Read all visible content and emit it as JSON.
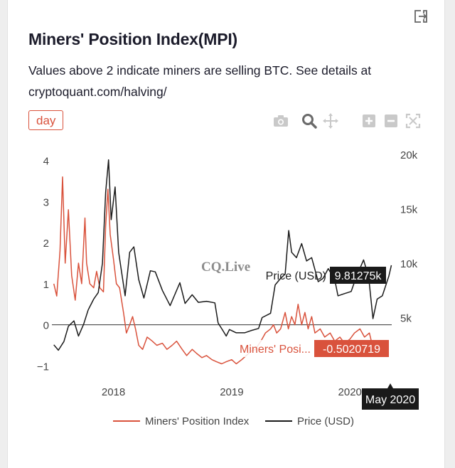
{
  "header": {
    "title": "Miners' Position Index(MPI)",
    "subtitle": "Values above 2 indicate miners are selling BTC. See details at cryptoquant.com/halving/",
    "period_label": "day"
  },
  "toolbar": {
    "icons": [
      "camera-icon",
      "zoom-icon",
      "pan-icon",
      "zoom-in-icon",
      "zoom-out-icon",
      "autoscale-icon"
    ],
    "export_icon": "export-icon"
  },
  "watermark": "CQ.Live",
  "hover": {
    "price_label": "Price (USD)",
    "price_value": "9.81275k",
    "mpi_label": "Miners' Posi...",
    "mpi_value": "-0.5020719",
    "x_label": "May 2020"
  },
  "colors": {
    "mpi": "#d9523c",
    "price": "#1a1a1a",
    "accent": "#d9523c",
    "axis_text": "#444444"
  },
  "chart_data": {
    "type": "line",
    "x_ticks": [
      "2018",
      "2019",
      "2020"
    ],
    "y_left": {
      "ticks": [
        -1,
        0,
        1,
        2,
        3,
        4
      ],
      "range": [
        -1.15,
        4.15
      ]
    },
    "y_right": {
      "ticks": [
        5000,
        10000,
        15000,
        20000
      ],
      "tick_labels": [
        "5k",
        "10k",
        "15k",
        "20k"
      ],
      "range": [
        0,
        20000
      ]
    },
    "legend": {
      "placement": "bottom"
    },
    "grid": false,
    "series": [
      {
        "name": "Miners' Position Index",
        "axis": "left",
        "color": "#d9523c",
        "points": [
          [
            "2017-07-01",
            1.0
          ],
          [
            "2017-07-10",
            0.7
          ],
          [
            "2017-07-20",
            1.8
          ],
          [
            "2017-07-28",
            3.6
          ],
          [
            "2017-08-05",
            1.5
          ],
          [
            "2017-08-15",
            2.8
          ],
          [
            "2017-08-25",
            1.2
          ],
          [
            "2017-09-05",
            0.6
          ],
          [
            "2017-09-15",
            1.5
          ],
          [
            "2017-09-25",
            1.0
          ],
          [
            "2017-10-05",
            2.6
          ],
          [
            "2017-10-10",
            1.5
          ],
          [
            "2017-10-20",
            1.0
          ],
          [
            "2017-11-01",
            0.9
          ],
          [
            "2017-11-10",
            1.3
          ],
          [
            "2017-11-20",
            0.9
          ],
          [
            "2017-12-01",
            0.8
          ],
          [
            "2017-12-08",
            2.4
          ],
          [
            "2017-12-15",
            3.3
          ],
          [
            "2017-12-22",
            2.2
          ],
          [
            "2018-01-01",
            1.6
          ],
          [
            "2018-01-10",
            1.0
          ],
          [
            "2018-01-20",
            0.9
          ],
          [
            "2018-02-01",
            0.3
          ],
          [
            "2018-02-10",
            -0.2
          ],
          [
            "2018-02-20",
            0.0
          ],
          [
            "2018-03-01",
            0.2
          ],
          [
            "2018-03-10",
            -0.1
          ],
          [
            "2018-03-20",
            -0.5
          ],
          [
            "2018-04-01",
            -0.6
          ],
          [
            "2018-04-15",
            -0.3
          ],
          [
            "2018-05-01",
            -0.4
          ],
          [
            "2018-05-15",
            -0.5
          ],
          [
            "2018-06-01",
            -0.45
          ],
          [
            "2018-06-15",
            -0.6
          ],
          [
            "2018-07-01",
            -0.5
          ],
          [
            "2018-07-15",
            -0.4
          ],
          [
            "2018-08-01",
            -0.6
          ],
          [
            "2018-08-15",
            -0.75
          ],
          [
            "2018-09-01",
            -0.6
          ],
          [
            "2018-09-15",
            -0.7
          ],
          [
            "2018-10-01",
            -0.8
          ],
          [
            "2018-10-15",
            -0.75
          ],
          [
            "2018-11-01",
            -0.85
          ],
          [
            "2018-11-15",
            -0.9
          ],
          [
            "2018-12-01",
            -0.95
          ],
          [
            "2018-12-15",
            -0.9
          ],
          [
            "2019-01-01",
            -0.85
          ],
          [
            "2019-01-15",
            -0.95
          ],
          [
            "2019-02-01",
            -0.85
          ],
          [
            "2019-02-15",
            -0.75
          ],
          [
            "2019-03-01",
            -0.65
          ],
          [
            "2019-03-15",
            -0.6
          ],
          [
            "2019-04-01",
            -0.4
          ],
          [
            "2019-04-15",
            -0.2
          ],
          [
            "2019-05-01",
            -0.1
          ],
          [
            "2019-05-10",
            0.0
          ],
          [
            "2019-05-20",
            -0.2
          ],
          [
            "2019-06-01",
            -0.1
          ],
          [
            "2019-06-15",
            0.3
          ],
          [
            "2019-06-25",
            -0.1
          ],
          [
            "2019-07-05",
            0.2
          ],
          [
            "2019-07-15",
            0.0
          ],
          [
            "2019-07-25",
            0.5
          ],
          [
            "2019-08-05",
            0.0
          ],
          [
            "2019-08-15",
            0.3
          ],
          [
            "2019-08-25",
            -0.1
          ],
          [
            "2019-09-05",
            0.2
          ],
          [
            "2019-09-15",
            -0.2
          ],
          [
            "2019-10-01",
            -0.1
          ],
          [
            "2019-10-15",
            -0.3
          ],
          [
            "2019-11-01",
            -0.2
          ],
          [
            "2019-11-15",
            -0.4
          ],
          [
            "2019-12-01",
            -0.3
          ],
          [
            "2019-12-15",
            -0.45
          ],
          [
            "2020-01-01",
            -0.35
          ],
          [
            "2020-01-15",
            -0.2
          ],
          [
            "2020-02-01",
            -0.1
          ],
          [
            "2020-02-15",
            -0.3
          ],
          [
            "2020-03-01",
            -0.2
          ],
          [
            "2020-03-10",
            -0.5
          ]
        ]
      },
      {
        "name": "Price (USD)",
        "axis": "right",
        "color": "#1a1a1a",
        "points": [
          [
            "2017-07-01",
            2500
          ],
          [
            "2017-07-15",
            2000
          ],
          [
            "2017-08-01",
            2800
          ],
          [
            "2017-08-15",
            4200
          ],
          [
            "2017-09-01",
            4700
          ],
          [
            "2017-09-15",
            3300
          ],
          [
            "2017-10-01",
            4400
          ],
          [
            "2017-10-15",
            5700
          ],
          [
            "2017-11-01",
            6700
          ],
          [
            "2017-11-15",
            7300
          ],
          [
            "2017-11-28",
            10000
          ],
          [
            "2017-12-08",
            16500
          ],
          [
            "2017-12-17",
            19500
          ],
          [
            "2017-12-25",
            14000
          ],
          [
            "2018-01-06",
            17000
          ],
          [
            "2018-01-17",
            11000
          ],
          [
            "2018-02-06",
            7000
          ],
          [
            "2018-02-20",
            11000
          ],
          [
            "2018-03-05",
            11500
          ],
          [
            "2018-03-20",
            8500
          ],
          [
            "2018-04-05",
            6800
          ],
          [
            "2018-04-25",
            9300
          ],
          [
            "2018-05-10",
            9200
          ],
          [
            "2018-06-01",
            7500
          ],
          [
            "2018-06-25",
            6100
          ],
          [
            "2018-07-25",
            8200
          ],
          [
            "2018-08-10",
            6300
          ],
          [
            "2018-09-01",
            7100
          ],
          [
            "2018-09-20",
            6400
          ],
          [
            "2018-10-15",
            6500
          ],
          [
            "2018-11-10",
            6350
          ],
          [
            "2018-11-20",
            4500
          ],
          [
            "2018-12-05",
            3800
          ],
          [
            "2018-12-15",
            3300
          ],
          [
            "2018-12-25",
            3900
          ],
          [
            "2019-01-15",
            3600
          ],
          [
            "2019-02-10",
            3600
          ],
          [
            "2019-03-01",
            3800
          ],
          [
            "2019-03-25",
            4000
          ],
          [
            "2019-04-05",
            5000
          ],
          [
            "2019-05-01",
            5400
          ],
          [
            "2019-05-15",
            8000
          ],
          [
            "2019-06-01",
            8600
          ],
          [
            "2019-06-15",
            9000
          ],
          [
            "2019-06-26",
            13000
          ],
          [
            "2019-07-05",
            11000
          ],
          [
            "2019-07-20",
            10500
          ],
          [
            "2019-08-05",
            11800
          ],
          [
            "2019-08-20",
            10200
          ],
          [
            "2019-09-05",
            10500
          ],
          [
            "2019-09-25",
            8300
          ],
          [
            "2019-10-10",
            8600
          ],
          [
            "2019-10-26",
            9500
          ],
          [
            "2019-11-15",
            8500
          ],
          [
            "2019-11-25",
            7000
          ],
          [
            "2019-12-15",
            7200
          ],
          [
            "2020-01-05",
            7400
          ],
          [
            "2020-01-20",
            8700
          ],
          [
            "2020-02-12",
            10300
          ],
          [
            "2020-02-28",
            8700
          ],
          [
            "2020-03-12",
            4900
          ],
          [
            "2020-03-25",
            6700
          ],
          [
            "2020-04-10",
            7000
          ],
          [
            "2020-04-30",
            8800
          ],
          [
            "2020-05-08",
            9812
          ]
        ]
      }
    ]
  }
}
